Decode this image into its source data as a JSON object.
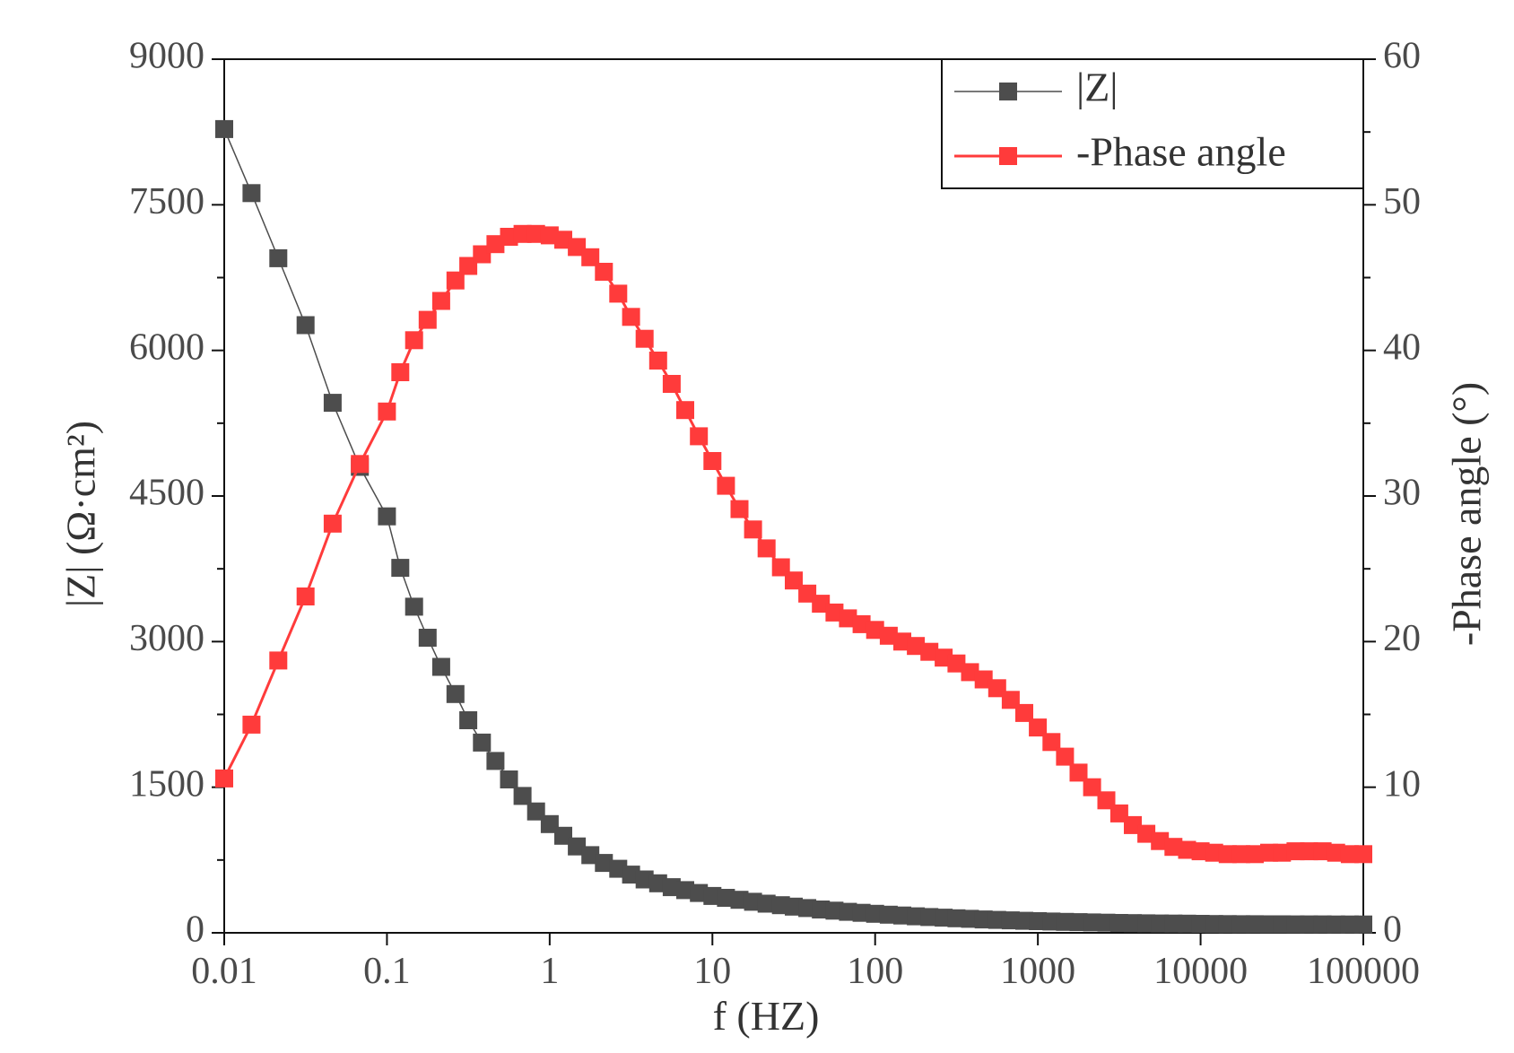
{
  "chart_data": {
    "type": "scatter",
    "title": "",
    "xlabel": "f (HZ)",
    "ylabel_left": "|Z| (Ω·cm²)",
    "ylabel_right": "-Phase angle (°)",
    "x_scale": "log",
    "xlim": [
      0.01,
      100000
    ],
    "ylim_left": [
      0,
      9000
    ],
    "ylim_right": [
      0,
      60
    ],
    "x_tick_labels": [
      "0.01",
      "0.1",
      "1",
      "10",
      "100",
      "1000",
      "10000",
      "100000"
    ],
    "x_tick_values": [
      0.01,
      0.1,
      1,
      10,
      100,
      1000,
      10000,
      100000
    ],
    "y_left_tick_labels": [
      "0",
      "1500",
      "3000",
      "4500",
      "6000",
      "7500",
      "9000"
    ],
    "y_left_tick_values": [
      0,
      1500,
      3000,
      4500,
      6000,
      7500,
      9000
    ],
    "y_right_tick_labels": [
      "0",
      "10",
      "20",
      "30",
      "40",
      "50",
      "60"
    ],
    "y_right_tick_values": [
      0,
      10,
      20,
      30,
      40,
      50,
      60
    ],
    "legend_position": "top-right",
    "grid": false,
    "series": [
      {
        "name": "|Z|",
        "axis": "left",
        "color": "#4d4d4d",
        "x": [
          0.01,
          0.0147,
          0.0215,
          0.0316,
          0.0464,
          0.0681,
          0.1,
          0.1208,
          0.1468,
          0.1778,
          0.2154,
          0.2637,
          0.3162,
          0.3831,
          0.4642,
          0.5623,
          0.681,
          0.8254,
          1,
          1.212,
          1.468,
          1.778,
          2.154,
          2.637,
          3.162,
          3.831,
          4.642,
          5.623,
          6.81,
          8.254,
          10,
          12.12,
          14.68,
          17.78,
          21.54,
          26.37,
          31.62,
          38.31,
          46.42,
          56.23,
          68.1,
          82.54,
          100,
          121.2,
          146.8,
          177.8,
          215.4,
          263.7,
          316.2,
          383.1,
          464.2,
          562.3,
          681,
          825.4,
          1000,
          1212,
          1468,
          1778,
          2154,
          2637,
          3162,
          3831,
          4642,
          5623,
          6810,
          8254,
          10000,
          12120,
          14680,
          17780,
          21540,
          26370,
          31620,
          38310,
          46420,
          56230,
          68100,
          82540,
          100000
        ],
        "values": [
          8280,
          7620,
          6950,
          6260,
          5460,
          4800,
          4290,
          3760,
          3360,
          3040,
          2740,
          2460,
          2190,
          1960,
          1770,
          1580,
          1410,
          1250,
          1120,
          1000,
          890,
          800,
          720,
          660,
          600,
          550,
          510,
          470,
          440,
          410,
          380,
          360,
          340,
          320,
          300,
          285,
          270,
          255,
          240,
          228,
          216,
          206,
          196,
          187,
          178,
          170,
          163,
          156,
          150,
          144,
          138,
          133,
          128,
          124,
          120,
          116,
          113,
          110,
          107,
          104,
          102,
          100,
          98,
          96,
          95,
          94,
          92,
          91,
          90,
          89,
          89,
          88,
          88,
          87,
          87,
          87,
          86,
          86,
          86
        ]
      },
      {
        "name": "-Phase angle",
        "axis": "right",
        "color": "#ff3b3b",
        "x": [
          0.01,
          0.0147,
          0.0215,
          0.0316,
          0.0464,
          0.0681,
          0.1,
          0.1208,
          0.1468,
          0.1778,
          0.2154,
          0.2637,
          0.3162,
          0.3831,
          0.4642,
          0.5623,
          0.681,
          0.8254,
          1,
          1.212,
          1.468,
          1.778,
          2.154,
          2.637,
          3.162,
          3.831,
          4.642,
          5.623,
          6.81,
          8.254,
          10,
          12.12,
          14.68,
          17.78,
          21.54,
          26.37,
          31.62,
          38.31,
          46.42,
          56.23,
          68.1,
          82.54,
          100,
          121.2,
          146.8,
          177.8,
          215.4,
          263.7,
          316.2,
          383.1,
          464.2,
          562.3,
          681,
          825.4,
          1000,
          1212,
          1468,
          1778,
          2154,
          2637,
          3162,
          3831,
          4642,
          5623,
          6810,
          8254,
          10000,
          12120,
          14680,
          17780,
          21540,
          26370,
          31620,
          38310,
          46420,
          56230,
          68100,
          82540,
          100000
        ],
        "values": [
          10.6,
          14.3,
          18.7,
          23.1,
          28.1,
          32.2,
          35.8,
          38.5,
          40.7,
          42.1,
          43.4,
          44.8,
          45.8,
          46.6,
          47.3,
          47.8,
          48.0,
          48.0,
          47.9,
          47.6,
          47.1,
          46.4,
          45.4,
          43.9,
          42.3,
          40.8,
          39.3,
          37.7,
          35.9,
          34.1,
          32.4,
          30.7,
          29.1,
          27.7,
          26.4,
          25.1,
          24.2,
          23.3,
          22.6,
          22.0,
          21.6,
          21.2,
          20.8,
          20.4,
          20.0,
          19.7,
          19.3,
          18.9,
          18.5,
          17.9,
          17.4,
          16.8,
          16.0,
          15.1,
          14.1,
          13.1,
          12.1,
          11.0,
          10.0,
          9.1,
          8.2,
          7.4,
          6.8,
          6.3,
          5.9,
          5.7,
          5.6,
          5.5,
          5.4,
          5.4,
          5.4,
          5.5,
          5.5,
          5.6,
          5.6,
          5.6,
          5.5,
          5.4,
          5.4
        ]
      }
    ]
  }
}
